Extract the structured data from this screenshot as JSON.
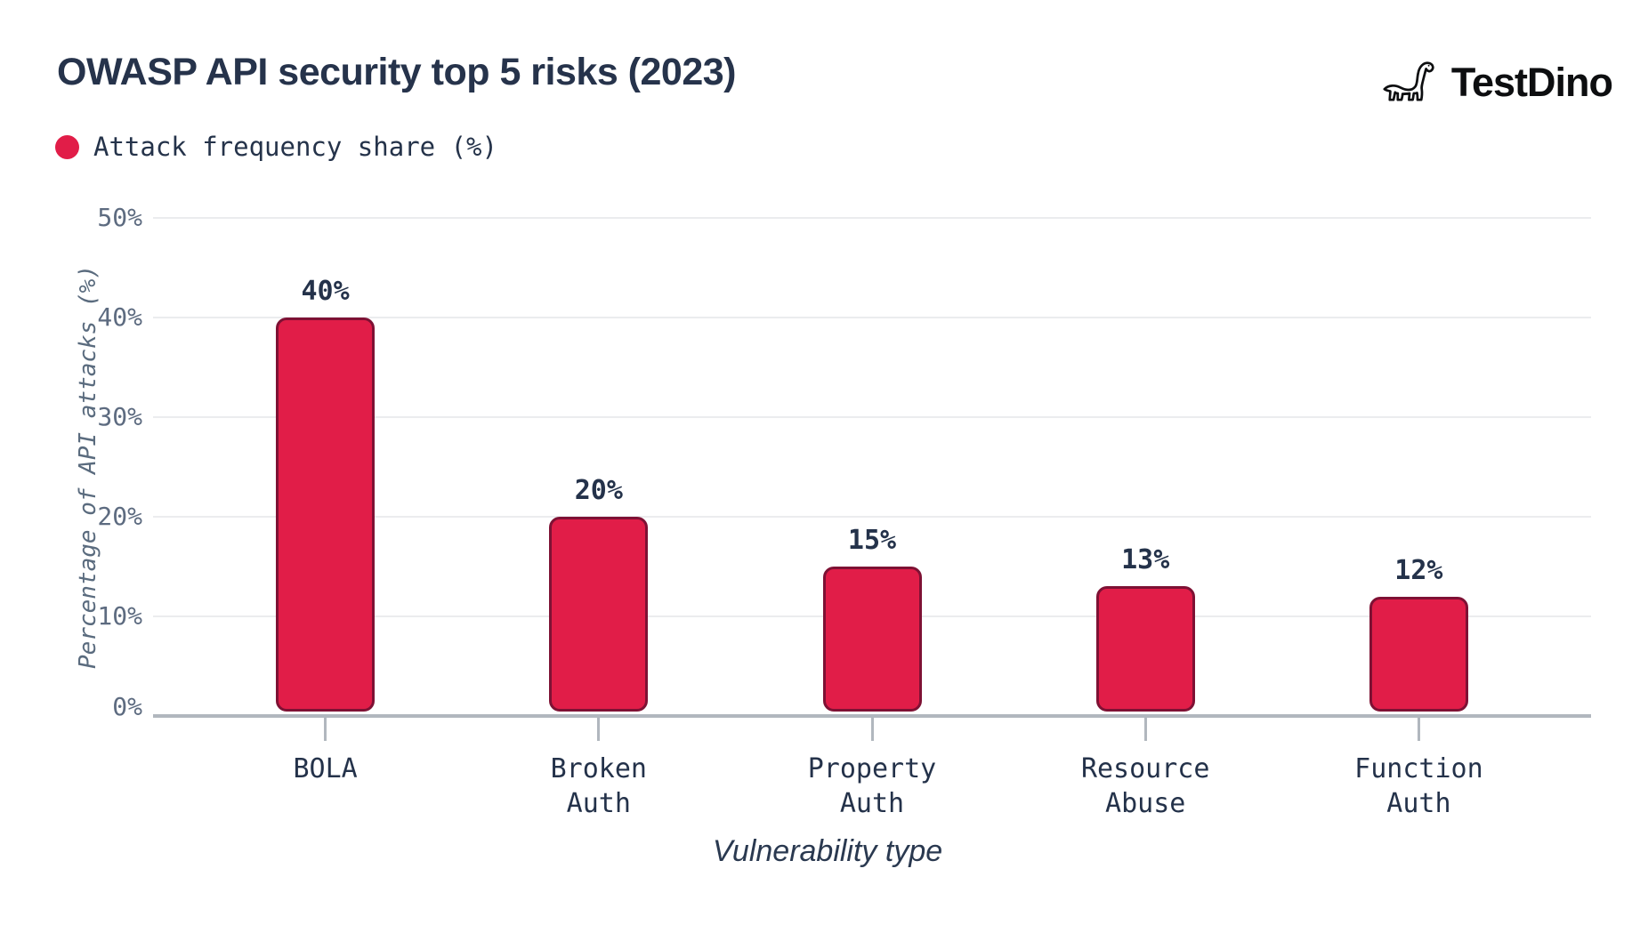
{
  "header": {
    "title": "OWASP API security top 5 risks (2023)",
    "brand": "TestDino",
    "brand_icon": "dino-icon"
  },
  "legend": {
    "label": "Attack frequency share (%)",
    "color": "#E11D48"
  },
  "chart_data": {
    "type": "bar",
    "title": "OWASP API security top 5 risks (2023)",
    "series": [
      {
        "name": "Attack frequency share (%)",
        "values": [
          40,
          20,
          15,
          13,
          12
        ]
      }
    ],
    "categories": [
      [
        "BOLA"
      ],
      [
        "Broken",
        "Auth"
      ],
      [
        "Property",
        "Auth"
      ],
      [
        "Resource",
        "Abuse"
      ],
      [
        "Function",
        "Auth"
      ]
    ],
    "value_labels": [
      "40%",
      "20%",
      "15%",
      "13%",
      "12%"
    ],
    "yticks": [
      {
        "value": 50,
        "label": "50%"
      },
      {
        "value": 40,
        "label": "40%"
      },
      {
        "value": 30,
        "label": "30%"
      },
      {
        "value": 20,
        "label": "20%"
      },
      {
        "value": 10,
        "label": "10%"
      },
      {
        "value": 0,
        "label": "0%"
      }
    ],
    "ylim": [
      0,
      50
    ],
    "xlabel": "Vulnerability type",
    "ylabel": "Percentage of API attacks (%)",
    "grid": true,
    "legend_position": "top-left",
    "colors": {
      "bar_fill": "#E11D48",
      "bar_border": "#7E1134",
      "grid_line": "#EBECEE",
      "axis_line": "#B1B7BE",
      "tick_text": "#5D6B80",
      "label_text": "#24324A"
    }
  }
}
